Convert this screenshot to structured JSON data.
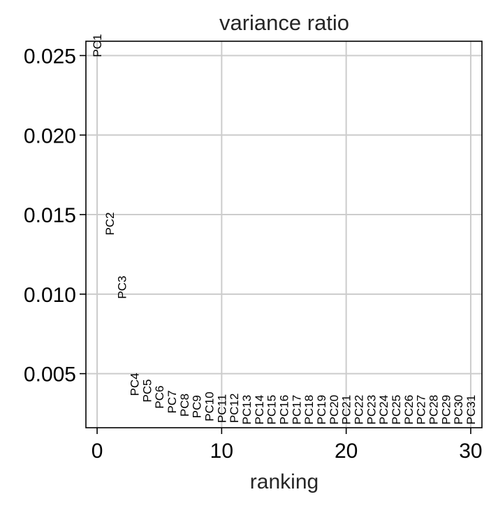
{
  "chart_data": {
    "type": "scatter",
    "title": "variance ratio",
    "xlabel": "ranking",
    "ylabel": "",
    "xlim": [
      -0.9,
      30.9
    ],
    "ylim": [
      0.0016,
      0.0259
    ],
    "grid": true,
    "x_ticks": [
      {
        "value": 0,
        "label": "0"
      },
      {
        "value": 10,
        "label": "10"
      },
      {
        "value": 20,
        "label": "20"
      },
      {
        "value": 30,
        "label": "30"
      }
    ],
    "y_ticks": [
      {
        "value": 0.005,
        "label": "0.005"
      },
      {
        "value": 0.01,
        "label": "0.010"
      },
      {
        "value": 0.015,
        "label": "0.015"
      },
      {
        "value": 0.02,
        "label": "0.020"
      },
      {
        "value": 0.025,
        "label": "0.025"
      }
    ],
    "points": [
      {
        "label": "PC1",
        "x": 0,
        "y": 0.0249
      },
      {
        "label": "PC2",
        "x": 1,
        "y": 0.0137
      },
      {
        "label": "PC3",
        "x": 2,
        "y": 0.0097
      },
      {
        "label": "PC4",
        "x": 3,
        "y": 0.0036
      },
      {
        "label": "PC5",
        "x": 4,
        "y": 0.0032
      },
      {
        "label": "PC6",
        "x": 5,
        "y": 0.0028
      },
      {
        "label": "PC7",
        "x": 6,
        "y": 0.0025
      },
      {
        "label": "PC8",
        "x": 7,
        "y": 0.0023
      },
      {
        "label": "PC9",
        "x": 8,
        "y": 0.0022
      },
      {
        "label": "PC10",
        "x": 9,
        "y": 0.002
      },
      {
        "label": "PC11",
        "x": 10,
        "y": 0.0019
      },
      {
        "label": "PC12",
        "x": 11,
        "y": 0.0019
      },
      {
        "label": "PC13",
        "x": 12,
        "y": 0.0018
      },
      {
        "label": "PC14",
        "x": 13,
        "y": 0.0018
      },
      {
        "label": "PC15",
        "x": 14,
        "y": 0.0018
      },
      {
        "label": "PC16",
        "x": 15,
        "y": 0.0018
      },
      {
        "label": "PC17",
        "x": 16,
        "y": 0.0018
      },
      {
        "label": "PC18",
        "x": 17,
        "y": 0.0018
      },
      {
        "label": "PC19",
        "x": 18,
        "y": 0.0018
      },
      {
        "label": "PC20",
        "x": 19,
        "y": 0.0018
      },
      {
        "label": "PC21",
        "x": 20,
        "y": 0.0018
      },
      {
        "label": "PC22",
        "x": 21,
        "y": 0.0018
      },
      {
        "label": "PC23",
        "x": 22,
        "y": 0.0018
      },
      {
        "label": "PC24",
        "x": 23,
        "y": 0.0018
      },
      {
        "label": "PC25",
        "x": 24,
        "y": 0.0018
      },
      {
        "label": "PC26",
        "x": 25,
        "y": 0.0018
      },
      {
        "label": "PC27",
        "x": 26,
        "y": 0.0018
      },
      {
        "label": "PC28",
        "x": 27,
        "y": 0.0018
      },
      {
        "label": "PC29",
        "x": 28,
        "y": 0.0018
      },
      {
        "label": "PC30",
        "x": 29,
        "y": 0.0018
      },
      {
        "label": "PC31",
        "x": 30,
        "y": 0.0018
      }
    ]
  }
}
